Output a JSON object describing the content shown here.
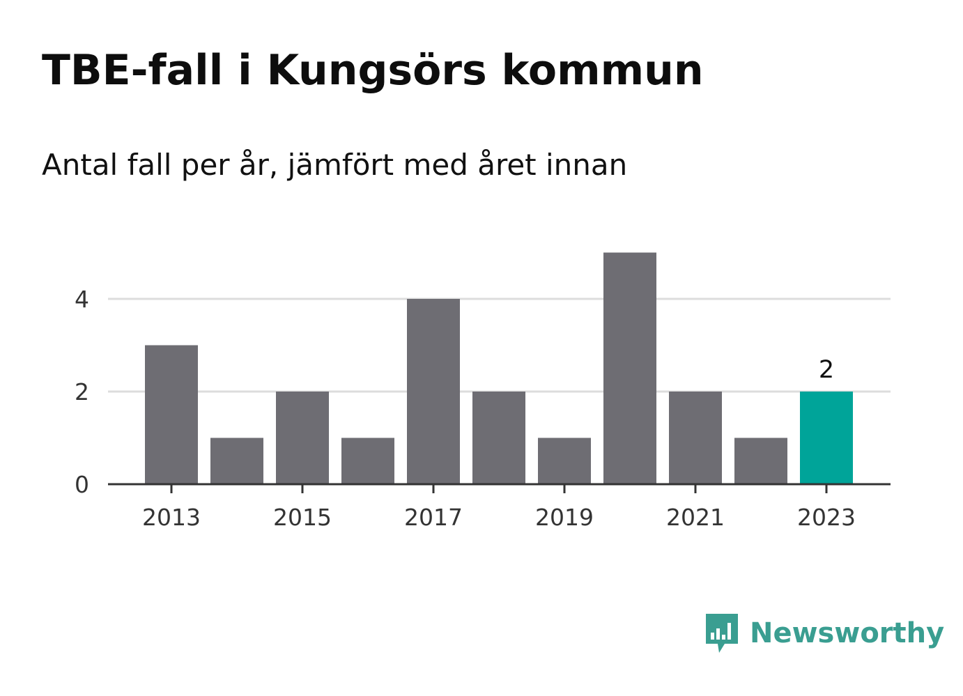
{
  "header": {
    "title": "TBE-fall i Kungsörs kommun",
    "subtitle": "Antal fall per år, jämfört med året innan"
  },
  "brand": {
    "name": "Newsworthy",
    "icon": "bar-chart-speech-bubble-icon",
    "color": "#3a9e91"
  },
  "colors": {
    "bar": "#6e6d73",
    "highlight": "#00a499",
    "grid": "#dddddd",
    "axis": "#333333"
  },
  "chart_data": {
    "type": "bar",
    "categories": [
      "2013",
      "2014",
      "2015",
      "2016",
      "2017",
      "2018",
      "2019",
      "2020",
      "2021",
      "2022",
      "2023"
    ],
    "values": [
      3,
      1,
      2,
      1,
      4,
      2,
      1,
      5,
      2,
      1,
      2
    ],
    "x_tick_labels": [
      "2013",
      "2015",
      "2017",
      "2019",
      "2021",
      "2023"
    ],
    "y_ticks": [
      0,
      2,
      4
    ],
    "ylim": [
      0,
      5
    ],
    "highlight_category": "2023",
    "data_labels": [
      {
        "category": "2023",
        "text": "2"
      }
    ],
    "xlabel": "",
    "ylabel": "",
    "grid": true,
    "legend": "none"
  }
}
